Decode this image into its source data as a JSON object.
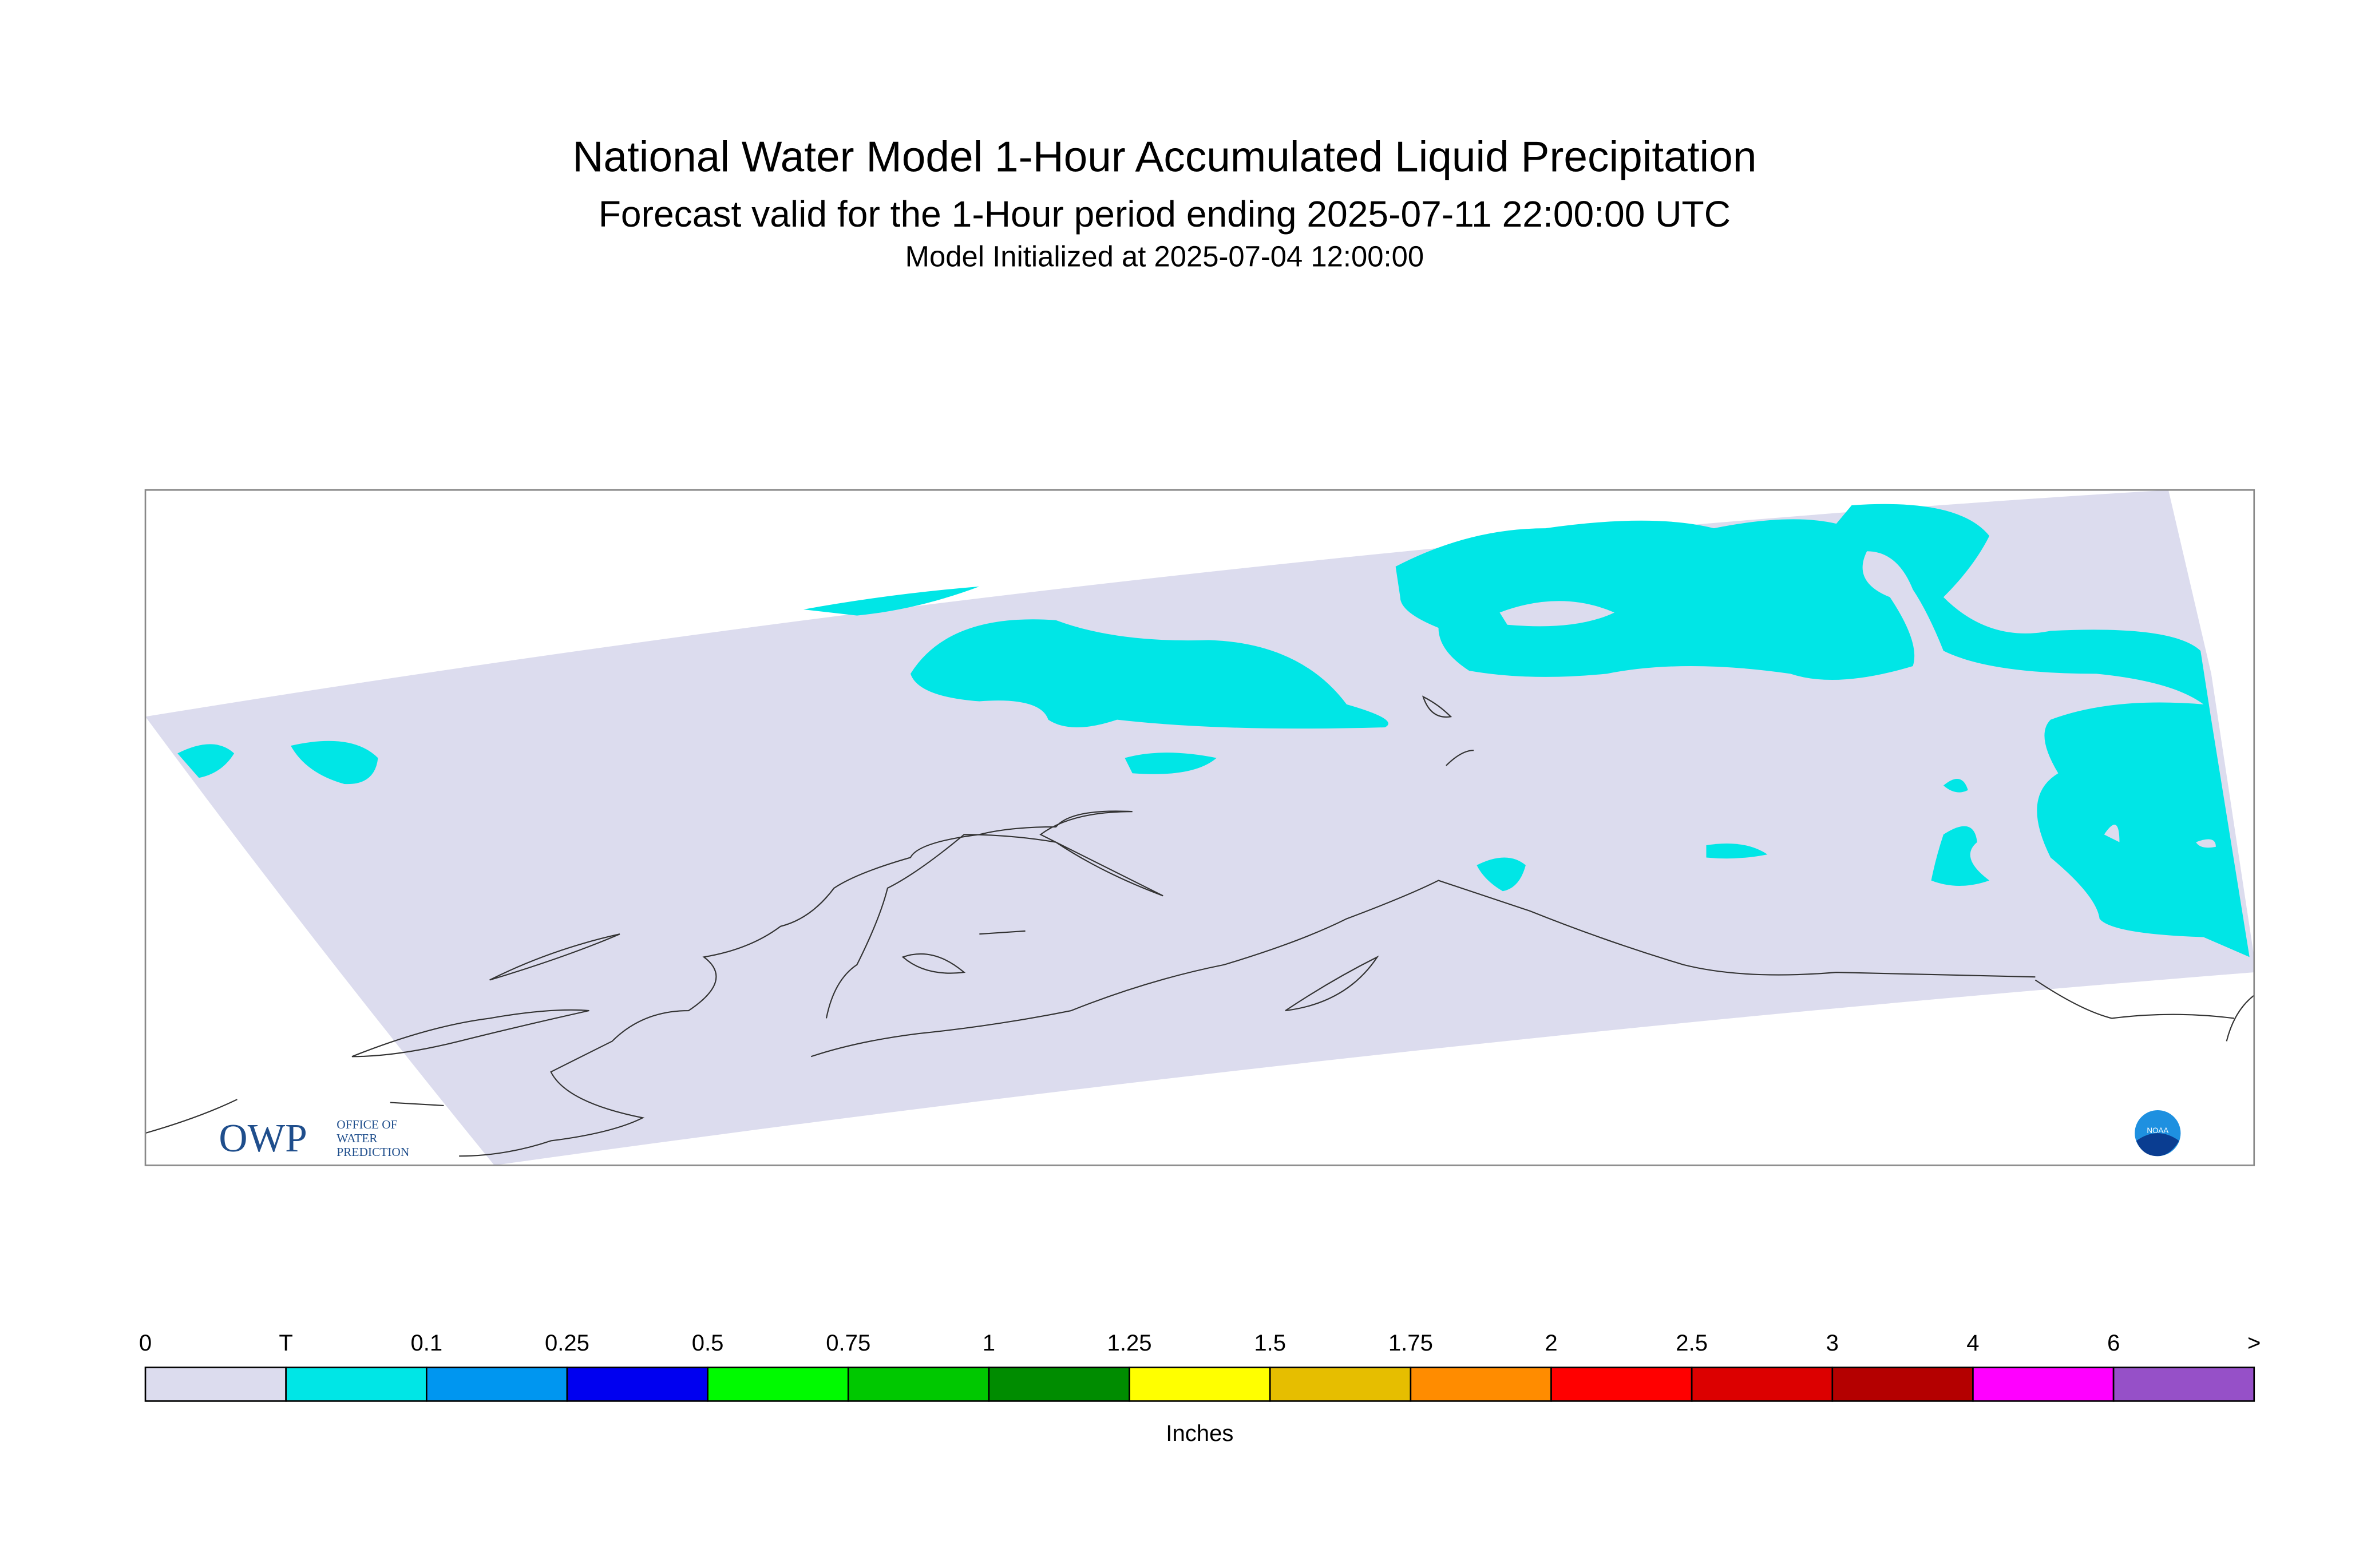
{
  "header": {
    "title": "National Water Model 1-Hour Accumulated Liquid Precipitation",
    "subtitle": "Forecast valid for the 1-Hour period ending 2025-07-11 22:00:00 UTC",
    "init": "Model Initialized at 2025-07-04 12:00:00"
  },
  "logo": {
    "owp": "OWP",
    "office": "OFFICE OF",
    "water": "WATER",
    "prediction": "PREDICTION",
    "noaa": "NOAA"
  },
  "colorbar": {
    "units": "Inches",
    "labels": [
      0,
      "T",
      0.1,
      0.25,
      0.5,
      0.75,
      1,
      1.25,
      1.5,
      1.75,
      2,
      2.5,
      3,
      4,
      6,
      ">"
    ],
    "colors": [
      "#dcdcee",
      "#00e6e6",
      "#0096f0",
      "#0000f0",
      "#00fa00",
      "#00c800",
      "#008c00",
      "#ffff00",
      "#e6be00",
      "#ff8c00",
      "#ff0000",
      "#dc0000",
      "#b40000",
      "#ff00ff",
      "#9650c8"
    ]
  }
}
